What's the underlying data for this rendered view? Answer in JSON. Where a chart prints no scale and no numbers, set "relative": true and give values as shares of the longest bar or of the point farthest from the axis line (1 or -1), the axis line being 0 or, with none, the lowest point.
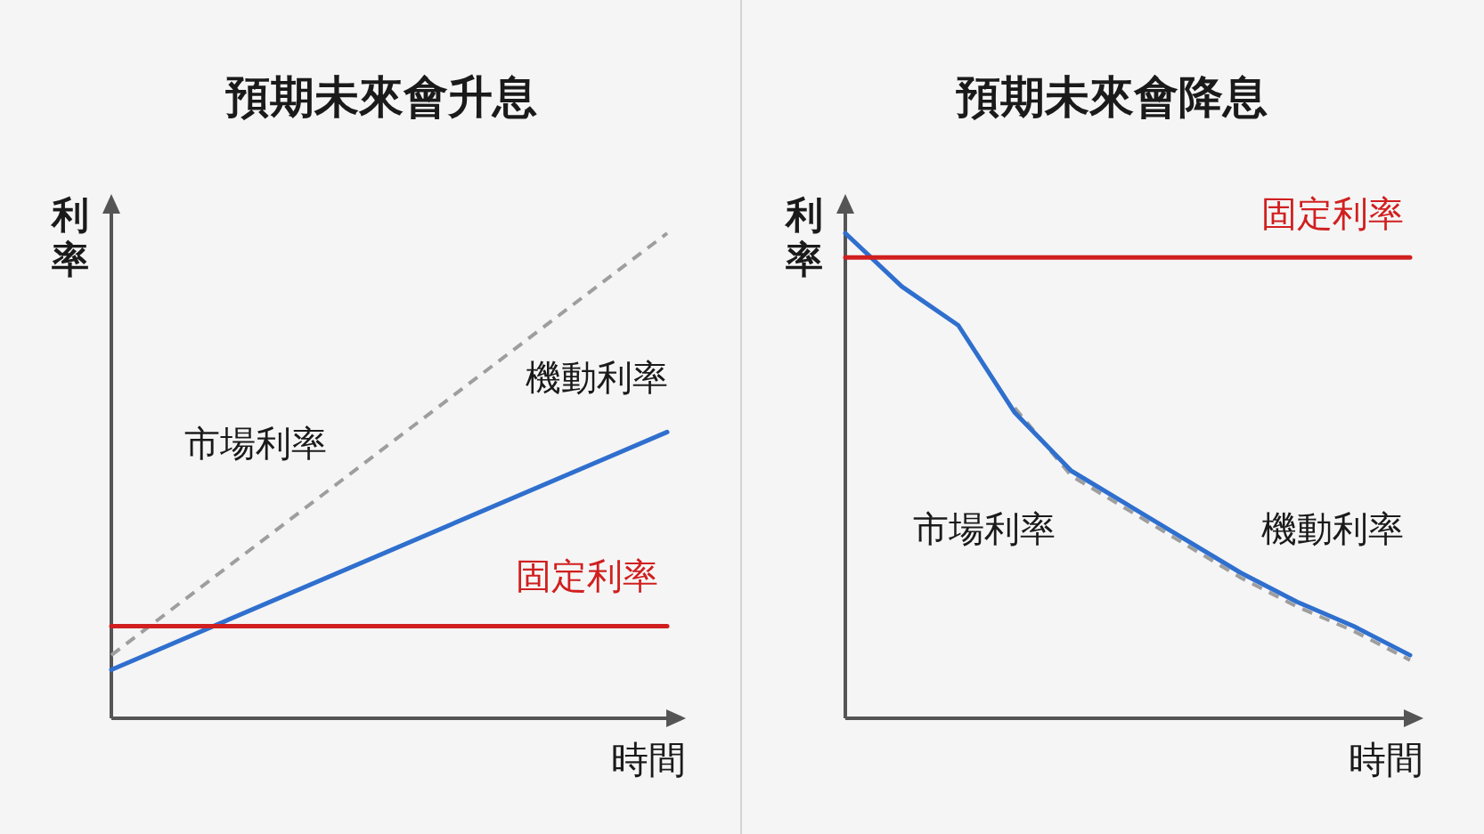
{
  "chart_data": [
    {
      "type": "line",
      "title": "預期未來會升息",
      "xlabel": "時間",
      "ylabel": "利率",
      "relative": true,
      "categories": [
        null,
        null
      ],
      "series": [
        {
          "name": "市場利率",
          "color": "#9e9e9e",
          "line_style": "dashed",
          "values": [
            0.13,
            1
          ]
        },
        {
          "name": "機動利率",
          "color": "#2f6fce",
          "line_style": "solid",
          "values": [
            0.1,
            0.59
          ]
        },
        {
          "name": "固定利率",
          "color": "#d11f1f",
          "line_style": "solid",
          "values": [
            0.19,
            0.19
          ]
        }
      ]
    },
    {
      "type": "line",
      "title": "預期未來會降息",
      "xlabel": "時間",
      "ylabel": "利率",
      "relative": true,
      "categories": [
        null,
        null,
        null,
        null,
        null,
        null,
        null,
        null,
        null,
        null,
        null
      ],
      "series": [
        {
          "name": "市場利率",
          "color": "#9e9e9e",
          "line_style": "dashed",
          "values": [
            null,
            null,
            null,
            0.64,
            0.5,
            0.43,
            0.36,
            0.29,
            0.23,
            0.18,
            0.12
          ]
        },
        {
          "name": "機動利率",
          "color": "#2f6fce",
          "line_style": "solid",
          "values": [
            1,
            0.89,
            0.81,
            0.63,
            0.51,
            0.44,
            0.37,
            0.3,
            0.24,
            0.19,
            0.13
          ]
        },
        {
          "name": "固定利率",
          "color": "#d11f1f",
          "line_style": "solid",
          "values": [
            0.95,
            0.95,
            0.95,
            0.95,
            0.95,
            0.95,
            0.95,
            0.95,
            0.95,
            0.95,
            0.95
          ]
        }
      ]
    }
  ]
}
